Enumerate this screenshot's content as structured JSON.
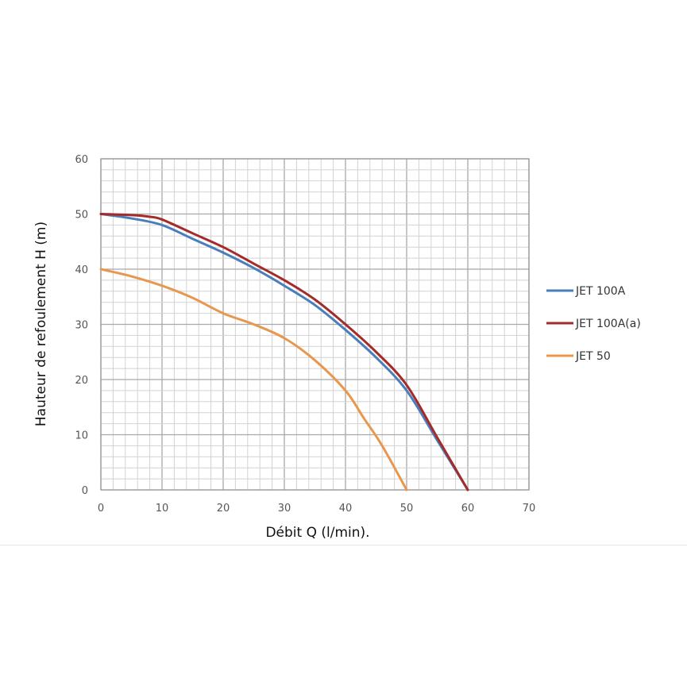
{
  "chart_data": {
    "type": "line",
    "title": "",
    "xlabel": "Débit Q (l/min).",
    "ylabel": "Hauteur de refoulement H (m)",
    "xlim": [
      0,
      70
    ],
    "ylim": [
      0,
      60
    ],
    "x_ticks": [
      "0",
      "10",
      "20",
      "30",
      "40",
      "50",
      "60",
      "70"
    ],
    "y_ticks": [
      "0",
      "10",
      "20",
      "30",
      "40",
      "50",
      "60"
    ],
    "grid": true,
    "minor_grid": true,
    "legend_position": "right",
    "series": [
      {
        "name": "JET 100A",
        "color": "#4a7ebb",
        "x": [
          0,
          5,
          10,
          15,
          20,
          25,
          30,
          35,
          40,
          45,
          50,
          55,
          60
        ],
        "y": [
          50,
          49.2,
          48,
          45.5,
          43,
          40.2,
          37,
          33.5,
          29,
          24,
          18,
          9,
          0
        ]
      },
      {
        "name": "JET 100A(a)",
        "color": "#a52a2a",
        "x": [
          0,
          5,
          8,
          10,
          15,
          20,
          25,
          30,
          35,
          40,
          45,
          50,
          55,
          60
        ],
        "y": [
          50,
          49.8,
          49.5,
          49,
          46.5,
          44,
          41,
          38,
          34.5,
          30,
          25,
          19,
          9.5,
          0
        ]
      },
      {
        "name": "JET 50",
        "color": "#e8984e",
        "x": [
          0,
          5,
          10,
          15,
          20,
          25,
          30,
          35,
          40,
          43,
          46,
          50
        ],
        "y": [
          40,
          38.7,
          37,
          34.8,
          32,
          30,
          27.5,
          23.5,
          18,
          13,
          8,
          0
        ]
      }
    ]
  }
}
